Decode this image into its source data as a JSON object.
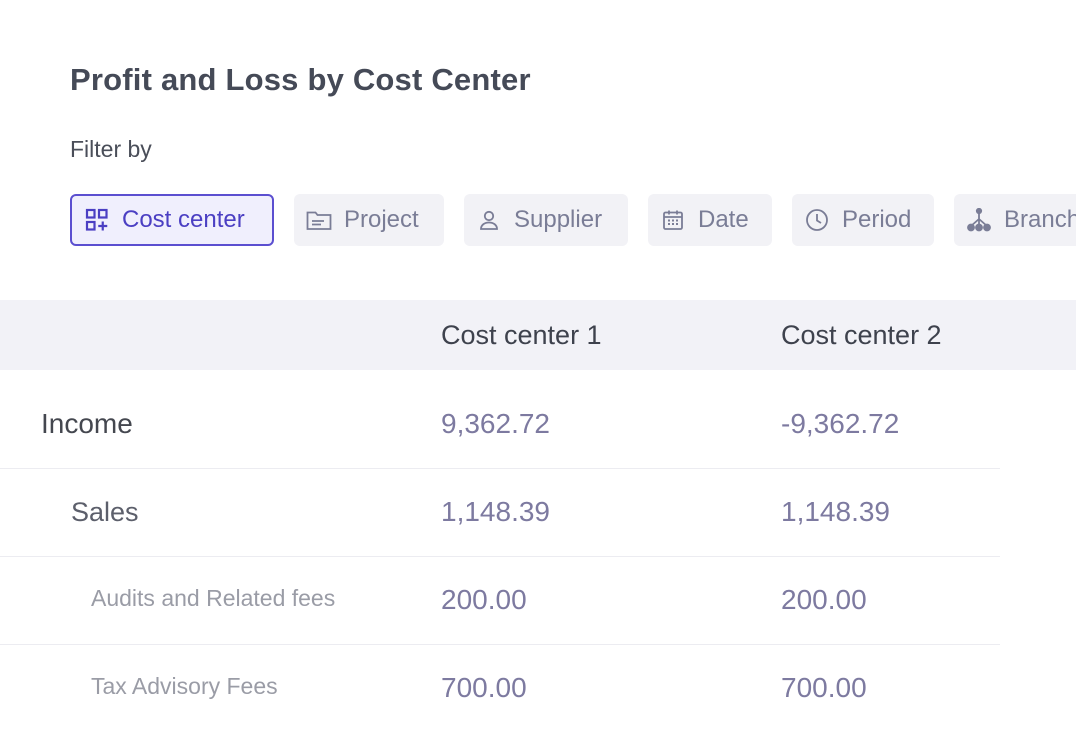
{
  "title": "Profit and Loss by Cost Center",
  "filter_label": "Filter by",
  "filters": [
    {
      "label": "Cost center",
      "icon": "cost-center-grid-icon",
      "active": true
    },
    {
      "label": "Project",
      "icon": "folder-icon",
      "active": false
    },
    {
      "label": "Supplier",
      "icon": "user-icon",
      "active": false
    },
    {
      "label": "Date",
      "icon": "calendar-icon",
      "active": false
    },
    {
      "label": "Period",
      "icon": "clock-icon",
      "active": false
    },
    {
      "label": "Branch",
      "icon": "branch-icon",
      "active": false
    }
  ],
  "table": {
    "columns": [
      "",
      "Cost center 1",
      "Cost center 2"
    ],
    "rows": [
      {
        "label": "Income",
        "level": 0,
        "values": [
          "9,362.72",
          "-9,362.72"
        ]
      },
      {
        "label": "Sales",
        "level": 1,
        "values": [
          "1,148.39",
          "1,148.39"
        ]
      },
      {
        "label": "Audits and Related fees",
        "level": 2,
        "values": [
          "200.00",
          "200.00"
        ]
      },
      {
        "label": "Tax Advisory Fees",
        "level": 2,
        "values": [
          "700.00",
          "700.00"
        ]
      }
    ]
  },
  "colors": {
    "accent": "#5b4fd0",
    "chip_bg": "#f2f2f6",
    "header_bg": "#f2f2f7",
    "value_text": "#7d7aa0"
  }
}
